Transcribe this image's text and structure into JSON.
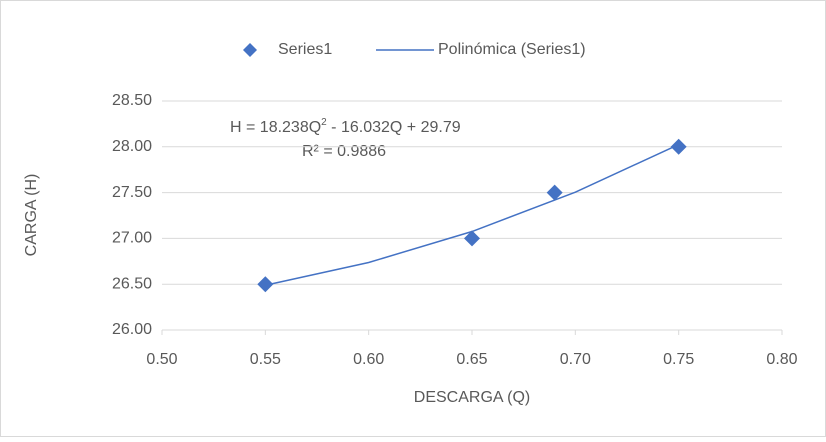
{
  "chart_data": {
    "type": "scatter",
    "xlabel": "DESCARGA (Q)",
    "ylabel": "CARGA (H)",
    "xlim": [
      0.5,
      0.8
    ],
    "xticks": [
      {
        "value": 0.5,
        "label": "0.50"
      },
      {
        "value": 0.55,
        "label": "0.55"
      },
      {
        "value": 0.6,
        "label": "0.60"
      },
      {
        "value": 0.65,
        "label": "0.65"
      },
      {
        "value": 0.7,
        "label": "0.70"
      },
      {
        "value": 0.75,
        "label": "0.75"
      },
      {
        "value": 0.8,
        "label": "0.80"
      }
    ],
    "ylim": [
      26,
      28.5
    ],
    "yticks": [
      {
        "value": 26,
        "label": "26.00"
      },
      {
        "value": 26.5,
        "label": "26.50"
      },
      {
        "value": 27,
        "label": "27.00"
      },
      {
        "value": 27.5,
        "label": "27.50"
      },
      {
        "value": 28,
        "label": "28.00"
      },
      {
        "value": 28.5,
        "label": "28.50"
      }
    ],
    "grid": true,
    "legend": "top",
    "series": [
      {
        "name": "Series1",
        "color": "#4472c4",
        "x": [
          0.55,
          0.65,
          0.69,
          0.75
        ],
        "values": [
          26.5,
          27.0,
          27.5,
          28.0
        ]
      }
    ],
    "trendline": {
      "name": "Polinómica (Series1)",
      "color": "#4472c4",
      "x": [
        0.55,
        0.6,
        0.65,
        0.7,
        0.75
      ],
      "values": [
        26.489,
        26.737,
        27.075,
        27.504,
        28.025
      ]
    },
    "annotation": {
      "equation": [
        "H = 18.238Q",
        "2",
        " - 16.032Q + 29.79"
      ],
      "r2": "R² = 0.9886"
    }
  }
}
